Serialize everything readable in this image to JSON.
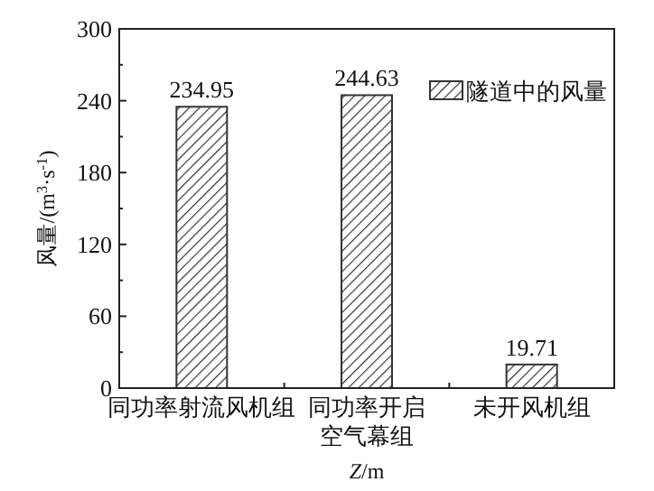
{
  "chart_data": {
    "type": "bar",
    "xlabel": "*Z*/m",
    "ylabel": "风量/(m$^{3}$·s$^{-1}$)",
    "categories": [
      "同功率射流风机组",
      "同功率开启空气幕组",
      "未开风机组"
    ],
    "series": [
      {
        "name": "隧道中的风量",
        "color": "#333333",
        "values": [
          234.95,
          244.63,
          19.71
        ]
      }
    ],
    "ylim": [
      0,
      300
    ],
    "yticks": [
      0,
      60,
      120,
      180,
      240,
      300
    ],
    "data_labels": true,
    "legend": "top right"
  }
}
